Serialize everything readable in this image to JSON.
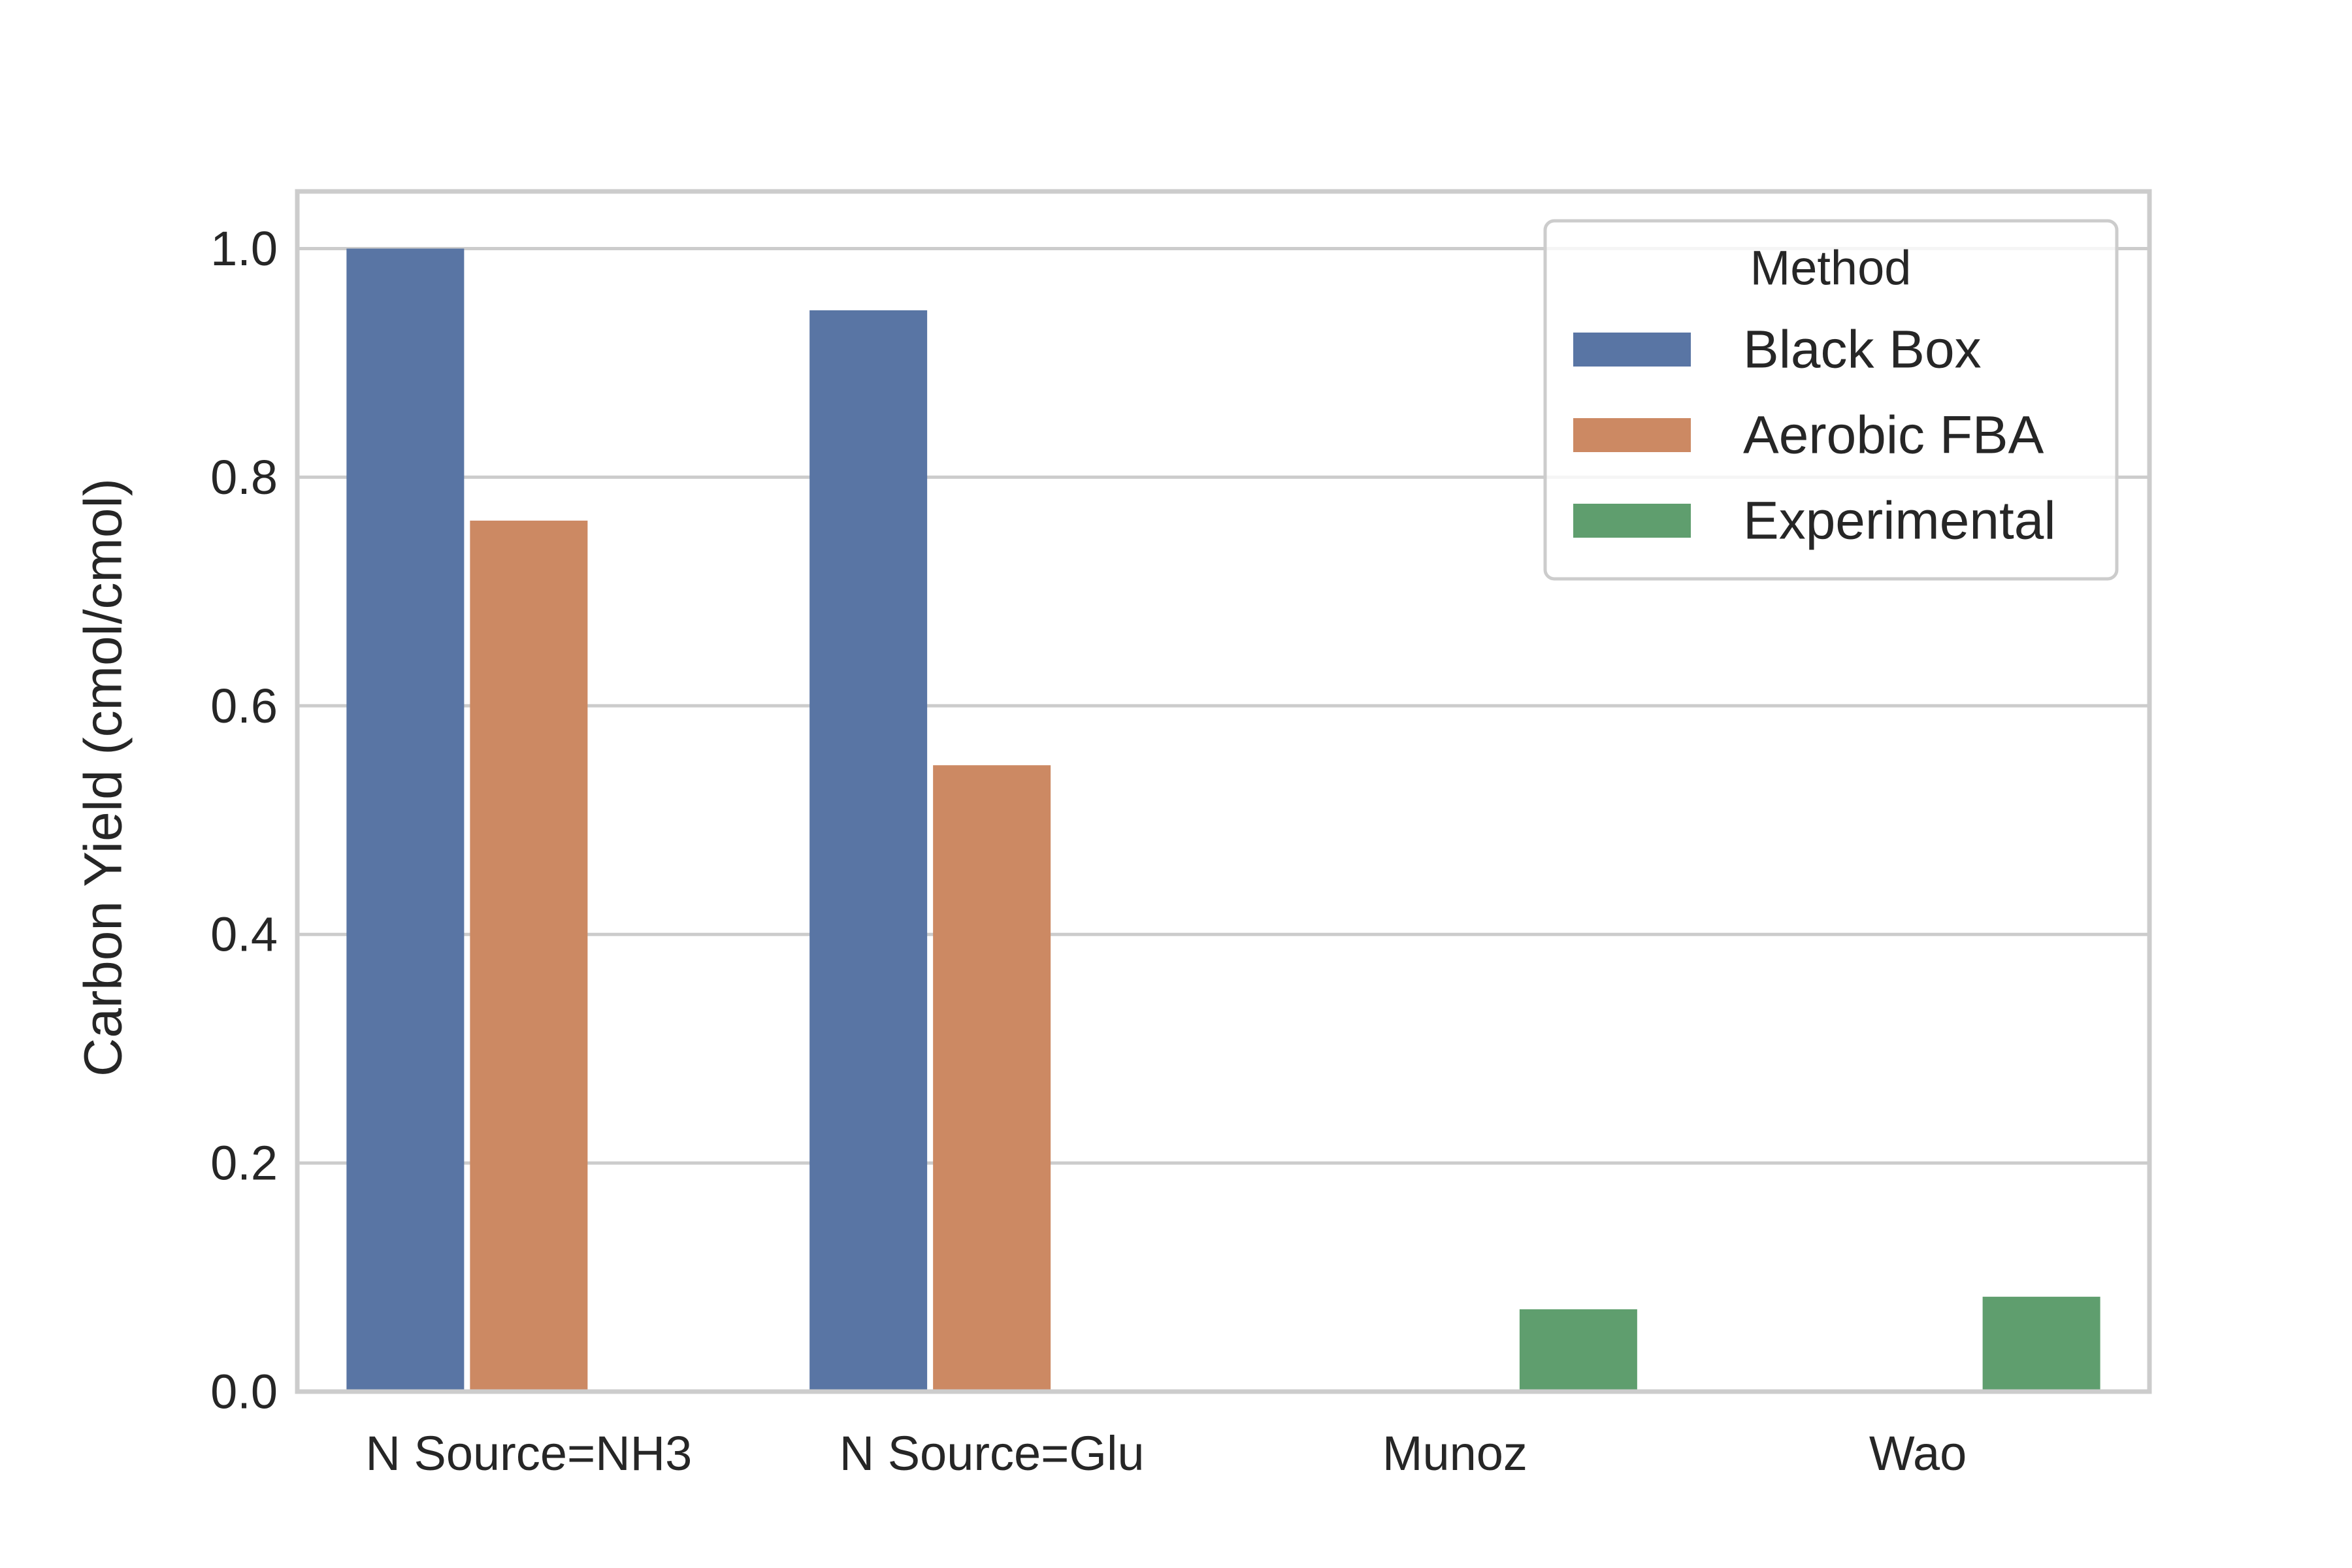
{
  "chart_data": {
    "type": "bar",
    "categories": [
      "N Source=NH3",
      "N Source=Glu",
      "Munoz",
      "Wao"
    ],
    "series": [
      {
        "name": "Black Box",
        "color": "#5975a4",
        "values": [
          1.0,
          0.946,
          null,
          null
        ]
      },
      {
        "name": "Aerobic FBA",
        "color": "#cc8963",
        "values": [
          0.762,
          0.548,
          null,
          null
        ]
      },
      {
        "name": "Experimental",
        "color": "#5f9e6e",
        "values": [
          null,
          null,
          0.072,
          0.083
        ]
      }
    ],
    "title": "",
    "xlabel": "",
    "ylabel": "Carbon Yield (cmol/cmol)",
    "ylim": [
      0,
      1.05
    ],
    "yticks": [
      "0.0",
      "0.2",
      "0.4",
      "0.6",
      "0.8",
      "1.0"
    ],
    "grid": true,
    "legend": {
      "title": "Method",
      "placement": "top-right"
    },
    "colors": {
      "grid": "#cccccc",
      "spine": "#cccccc",
      "text": "#262626"
    }
  }
}
